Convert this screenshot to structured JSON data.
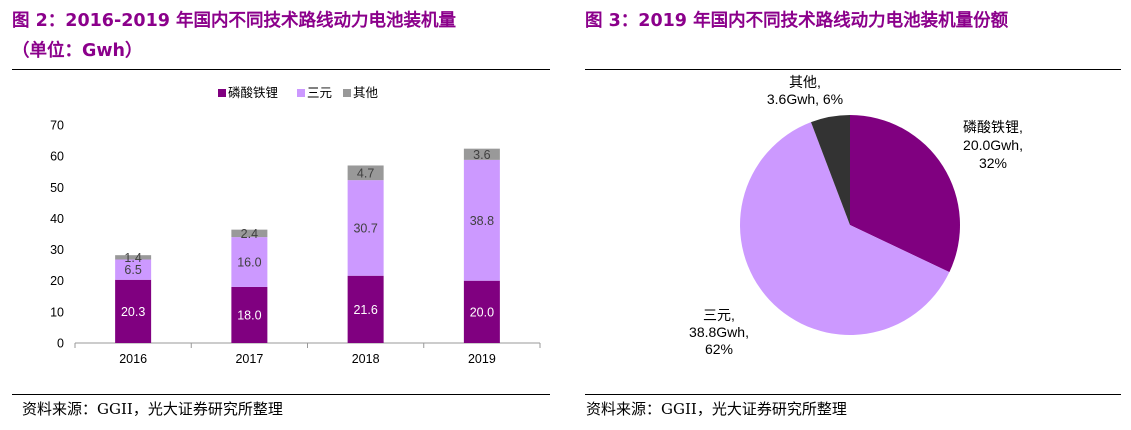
{
  "colors": {
    "title": "#8B008B",
    "lfp": "#800080",
    "ternary": "#CC99FF",
    "other": "#999999",
    "pie_other": "#333333"
  },
  "left": {
    "title_line1": "图 2：2016-2019 年国内不同技术路线动力电池装机量",
    "title_line2": "（单位：Gwh）",
    "source": "资料来源：GGII，光大证券研究所整理"
  },
  "right": {
    "title": "图 3：2019 年国内不同技术路线动力电池装机量份额",
    "source": "资料来源：GGII，光大证券研究所整理"
  },
  "chart_data": [
    {
      "type": "bar",
      "stacked": true,
      "title": "2016-2019 年国内不同技术路线动力电池装机量（单位：Gwh）",
      "categories": [
        "2016",
        "2017",
        "2018",
        "2019"
      ],
      "series": [
        {
          "name": "磷酸铁锂",
          "values": [
            20.3,
            18.0,
            21.6,
            20.0
          ],
          "labels": [
            "20.3",
            "18.0",
            "21.6",
            "20.0"
          ]
        },
        {
          "name": "三元",
          "values": [
            6.5,
            16.0,
            30.7,
            38.8
          ],
          "labels": [
            "6.5",
            "16.0",
            "30.7",
            "38.8"
          ]
        },
        {
          "name": "其他",
          "values": [
            1.4,
            2.4,
            4.7,
            3.6
          ],
          "labels": [
            "1.4",
            "2.4",
            "4.7",
            "3.6"
          ]
        }
      ],
      "ylim": [
        0,
        70
      ],
      "yticks": [
        "0",
        "10",
        "20",
        "30",
        "40",
        "50",
        "60",
        "70"
      ],
      "legend_position": "top",
      "grid": false
    },
    {
      "type": "pie",
      "title": "2019 年国内不同技术路线动力电池装机量份额",
      "slices": [
        {
          "name": "磷酸铁锂",
          "value": 20.0,
          "label_lines": [
            "磷酸铁锂,",
            "20.0Gwh,",
            "32%"
          ]
        },
        {
          "name": "三元",
          "value": 38.8,
          "label_lines": [
            "三元,",
            "38.8Gwh,",
            "62%"
          ]
        },
        {
          "name": "其他",
          "value": 3.6,
          "label_lines": [
            "其他,",
            "3.6Gwh, 6%"
          ]
        }
      ]
    }
  ]
}
